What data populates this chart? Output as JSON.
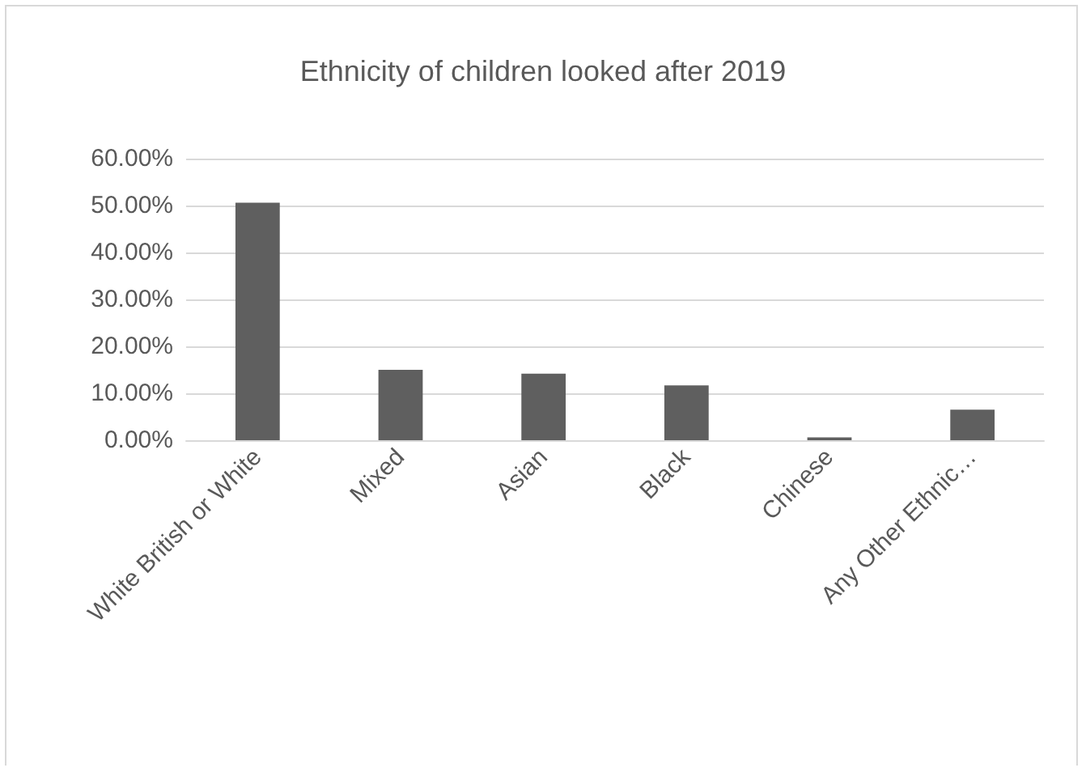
{
  "chart_data": {
    "type": "bar",
    "title": "Ethnicity of children looked after 2019",
    "categories": [
      "White British or White",
      "Mixed",
      "Asian",
      "Black",
      "Chinese",
      "Any Other Ethnic…"
    ],
    "values": [
      50.6,
      15.0,
      14.2,
      11.7,
      0.6,
      6.5
    ],
    "color": "#5f5f5f",
    "ylim": [
      0,
      60
    ],
    "yticks": [
      {
        "value": 0,
        "label": "0.00%"
      },
      {
        "value": 10,
        "label": "10.00%"
      },
      {
        "value": 20,
        "label": "20.00%"
      },
      {
        "value": 30,
        "label": "30.00%"
      },
      {
        "value": 40,
        "label": "40.00%"
      },
      {
        "value": 50,
        "label": "50.00%"
      },
      {
        "value": 60,
        "label": "60.00%"
      }
    ],
    "grid": true
  }
}
